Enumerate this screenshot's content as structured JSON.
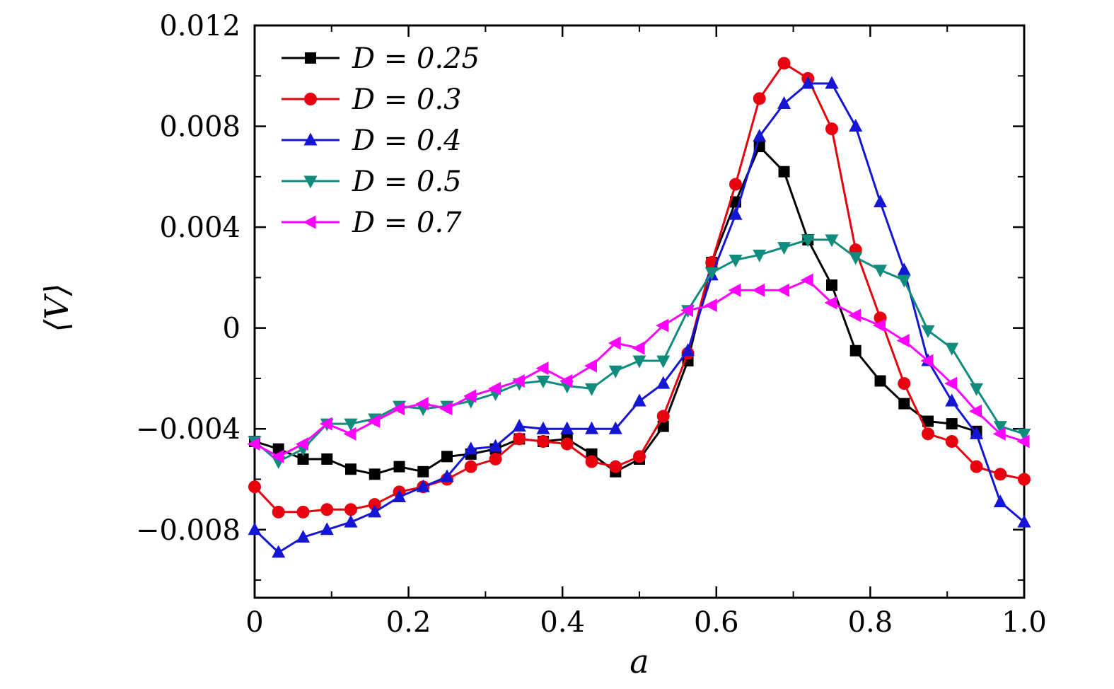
{
  "figure": {
    "background": "#ffffff",
    "axis_color": "#000000"
  },
  "chart_data": {
    "type": "line",
    "title": "",
    "xlabel": "a",
    "ylabel": "⟨V⟩",
    "xlim": [
      0,
      1.0
    ],
    "ylim": [
      -0.0107,
      0.012
    ],
    "grid": false,
    "legend_position": "top-left",
    "x_ticks": {
      "values": [
        0,
        0.2,
        0.4,
        0.6,
        0.8,
        1.0
      ],
      "labels": [
        "0",
        "0.2",
        "0.4",
        "0.6",
        "0.8",
        "1.0"
      ]
    },
    "y_ticks": {
      "values": [
        -0.008,
        -0.004,
        0,
        0.004,
        0.008,
        0.012
      ],
      "labels": [
        "−0.008",
        "−0.004",
        "0",
        "0.004",
        "0.008",
        "0.012"
      ]
    },
    "x_minor_step": 0.1,
    "y_minor_step": 0.002,
    "x": [
      0,
      0.031,
      0.063,
      0.094,
      0.125,
      0.156,
      0.188,
      0.219,
      0.25,
      0.281,
      0.313,
      0.344,
      0.375,
      0.406,
      0.438,
      0.469,
      0.5,
      0.531,
      0.563,
      0.594,
      0.625,
      0.656,
      0.688,
      0.719,
      0.75,
      0.781,
      0.813,
      0.844,
      0.875,
      0.906,
      0.938,
      0.969,
      1.0
    ],
    "series": [
      {
        "name": "D = 0.25",
        "color": "#000000",
        "marker": "square",
        "values": [
          -0.0045,
          -0.0048,
          -0.0052,
          -0.0052,
          -0.0056,
          -0.0058,
          -0.0055,
          -0.0057,
          -0.0051,
          -0.005,
          -0.0048,
          -0.0044,
          -0.0045,
          -0.0044,
          -0.005,
          -0.0057,
          -0.0052,
          -0.0039,
          -0.0013,
          0.0026,
          0.005,
          0.0072,
          0.0062,
          0.0035,
          0.0017,
          -0.0009,
          -0.0021,
          -0.003,
          -0.0037,
          -0.0038,
          -0.0041,
          null,
          null
        ]
      },
      {
        "name": "D = 0.3",
        "color": "#e8000f",
        "marker": "circle",
        "values": [
          -0.0063,
          -0.0073,
          -0.0073,
          -0.0072,
          -0.0072,
          -0.007,
          -0.0065,
          -0.0063,
          -0.006,
          -0.0055,
          -0.0052,
          -0.0044,
          -0.0045,
          -0.0046,
          -0.0053,
          -0.0055,
          -0.0051,
          -0.0035,
          -0.001,
          0.0026,
          0.0057,
          0.0091,
          0.0105,
          0.0099,
          0.0079,
          0.0031,
          0.0004,
          -0.0022,
          -0.0042,
          -0.0045,
          -0.0055,
          -0.0058,
          -0.006
        ]
      },
      {
        "name": "D = 0.4",
        "color": "#1515d6",
        "marker": "triangle-up",
        "values": [
          -0.008,
          -0.0089,
          -0.0083,
          -0.008,
          -0.0077,
          -0.0073,
          -0.0067,
          -0.0063,
          -0.0059,
          -0.0048,
          -0.0047,
          -0.0039,
          -0.004,
          -0.004,
          -0.004,
          -0.004,
          -0.0029,
          -0.0022,
          -0.0009,
          0.0021,
          0.0045,
          0.0076,
          0.0089,
          0.0097,
          0.0097,
          0.008,
          0.005,
          0.0023,
          -0.0013,
          -0.0029,
          -0.0042,
          -0.0069,
          -0.0077
        ]
      },
      {
        "name": "D = 0.5",
        "color": "#108c7e",
        "marker": "triangle-down",
        "values": [
          -0.0045,
          -0.0053,
          -0.0048,
          -0.0038,
          -0.0038,
          -0.0036,
          -0.0031,
          -0.0032,
          -0.0031,
          -0.0029,
          -0.0026,
          -0.0022,
          -0.0021,
          -0.0023,
          -0.0024,
          -0.0017,
          -0.0013,
          -0.0013,
          0.0007,
          0.0022,
          0.0027,
          0.0029,
          0.0032,
          0.0035,
          0.0035,
          0.0028,
          0.0023,
          0.0019,
          -0.0001,
          -0.0008,
          -0.0024,
          -0.0039,
          -0.0042
        ]
      },
      {
        "name": "D = 0.7",
        "color": "#ff00ff",
        "marker": "triangle-left",
        "values": [
          -0.0046,
          -0.0051,
          -0.0046,
          -0.0038,
          -0.0042,
          -0.0037,
          -0.0032,
          -0.003,
          -0.0032,
          -0.0027,
          -0.0024,
          -0.0021,
          -0.0016,
          -0.0021,
          -0.0015,
          -0.0006,
          -0.0008,
          0.0001,
          0.0007,
          0.0009,
          0.0015,
          0.0015,
          0.0015,
          0.0019,
          0.001,
          0.0005,
          0.0001,
          -0.0005,
          -0.0013,
          -0.0022,
          -0.0033,
          -0.0042,
          -0.0045
        ]
      }
    ]
  }
}
